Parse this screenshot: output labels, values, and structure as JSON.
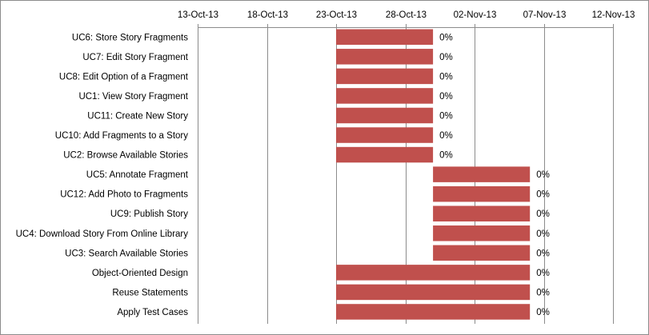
{
  "chart_data": {
    "type": "bar",
    "subtype": "gantt",
    "title": "",
    "xlabel": "",
    "ylabel": "",
    "x_ticks": [
      "13-Oct-13",
      "18-Oct-13",
      "23-Oct-13",
      "28-Oct-13",
      "02-Nov-13",
      "07-Nov-13",
      "12-Nov-13"
    ],
    "xlim": [
      "2013-10-13",
      "2013-11-12"
    ],
    "x_axis_position": "top",
    "grid": "vertical",
    "bar_color": "#c0504d",
    "tasks": [
      {
        "name": "UC6: Store Story Fragments",
        "start": "2013-10-23",
        "end": "2013-10-30",
        "complete": "0%"
      },
      {
        "name": "UC7: Edit Story Fragment",
        "start": "2013-10-23",
        "end": "2013-10-30",
        "complete": "0%"
      },
      {
        "name": "UC8: Edit Option of a Fragment",
        "start": "2013-10-23",
        "end": "2013-10-30",
        "complete": "0%"
      },
      {
        "name": "UC1: View Story Fragment",
        "start": "2013-10-23",
        "end": "2013-10-30",
        "complete": "0%"
      },
      {
        "name": "UC11: Create New Story",
        "start": "2013-10-23",
        "end": "2013-10-30",
        "complete": "0%"
      },
      {
        "name": "UC10: Add Fragments to a Story",
        "start": "2013-10-23",
        "end": "2013-10-30",
        "complete": "0%"
      },
      {
        "name": "UC2: Browse Available Stories",
        "start": "2013-10-23",
        "end": "2013-10-30",
        "complete": "0%"
      },
      {
        "name": "UC5: Annotate Fragment",
        "start": "2013-10-30",
        "end": "2013-11-06",
        "complete": "0%"
      },
      {
        "name": "UC12: Add Photo to Fragments",
        "start": "2013-10-30",
        "end": "2013-11-06",
        "complete": "0%"
      },
      {
        "name": "UC9: Publish Story",
        "start": "2013-10-30",
        "end": "2013-11-06",
        "complete": "0%"
      },
      {
        "name": "UC4: Download Story From Online Library",
        "start": "2013-10-30",
        "end": "2013-11-06",
        "complete": "0%"
      },
      {
        "name": "UC3: Search Available Stories",
        "start": "2013-10-30",
        "end": "2013-11-06",
        "complete": "0%"
      },
      {
        "name": "Object-Oriented Design",
        "start": "2013-10-23",
        "end": "2013-11-06",
        "complete": "0%"
      },
      {
        "name": "Reuse Statements",
        "start": "2013-10-23",
        "end": "2013-11-06",
        "complete": "0%"
      },
      {
        "name": "Apply Test Cases",
        "start": "2013-10-23",
        "end": "2013-11-06",
        "complete": "0%"
      }
    ]
  }
}
